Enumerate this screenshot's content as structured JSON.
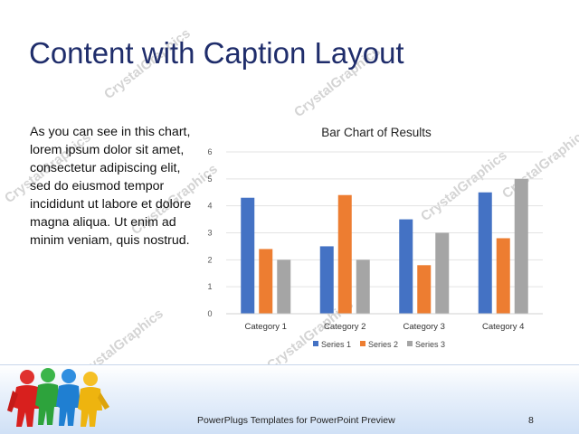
{
  "slide": {
    "title": "Content with Caption Layout",
    "caption": "As you can see in this chart, lorem ipsum dolor sit amet, consectetur adipiscing elit, sed do eiusmod tempor incididunt ut labore et dolore magna aliqua. Ut enim ad minim veniam, quis nostrud.",
    "footer": "PowerPlugs Templates for PowerPoint Preview",
    "slide_number": "8",
    "watermark": "CrystalGraphics",
    "logo_icon": "people-group-icon"
  },
  "chart_data": {
    "type": "bar",
    "title": "Bar Chart of Results",
    "categories": [
      "Category 1",
      "Category 2",
      "Category 3",
      "Category 4"
    ],
    "series": [
      {
        "name": "Series 1",
        "values": [
          4.3,
          2.5,
          3.5,
          4.5
        ],
        "color": "#4472c4"
      },
      {
        "name": "Series 2",
        "values": [
          2.4,
          4.4,
          1.8,
          2.8
        ],
        "color": "#ed7d31"
      },
      {
        "name": "Series 3",
        "values": [
          2.0,
          2.0,
          3.0,
          5.0
        ],
        "color": "#a5a5a5"
      }
    ],
    "ylim": [
      0,
      6
    ],
    "yticks": [
      "0",
      "1",
      "2",
      "3",
      "4",
      "5",
      "6"
    ],
    "grid": true,
    "legend": "bottom"
  }
}
